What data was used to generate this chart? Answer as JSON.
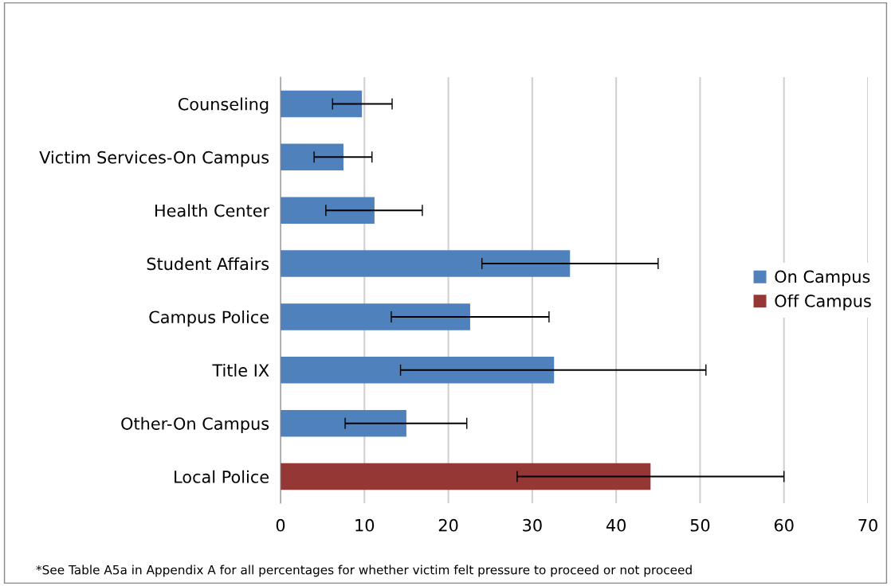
{
  "chart_data": {
    "type": "bar",
    "orientation": "horizontal",
    "categories": [
      "Counseling",
      "Victim Services-On Campus",
      "Health Center",
      "Student Affairs",
      "Campus Police",
      "Title IX",
      "Other-On Campus",
      "Local Police"
    ],
    "series": [
      {
        "name": "On Campus",
        "color": "#4f81bd",
        "values": [
          9.7,
          7.5,
          11.2,
          34.5,
          22.6,
          32.6,
          15.0,
          null
        ],
        "errors": [
          [
            6.2,
            13.3
          ],
          [
            4.0,
            10.9
          ],
          [
            5.4,
            16.9
          ],
          [
            24.0,
            45.0
          ],
          [
            13.2,
            32.0
          ],
          [
            14.3,
            50.7
          ],
          [
            7.7,
            22.2
          ],
          null
        ]
      },
      {
        "name": "Off Campus",
        "color": "#953735",
        "values": [
          null,
          null,
          null,
          null,
          null,
          null,
          null,
          44.1
        ],
        "errors": [
          null,
          null,
          null,
          null,
          null,
          null,
          null,
          [
            28.2,
            60.0
          ]
        ]
      }
    ],
    "xlim": [
      0,
      70
    ],
    "xticks": [
      0,
      10,
      20,
      30,
      40,
      50,
      60,
      70
    ],
    "grid": "x",
    "legend": "right",
    "annotations": [
      "*See Table A5a in Appendix A for all percentages for whether victim felt pressure to proceed or not proceed"
    ]
  }
}
